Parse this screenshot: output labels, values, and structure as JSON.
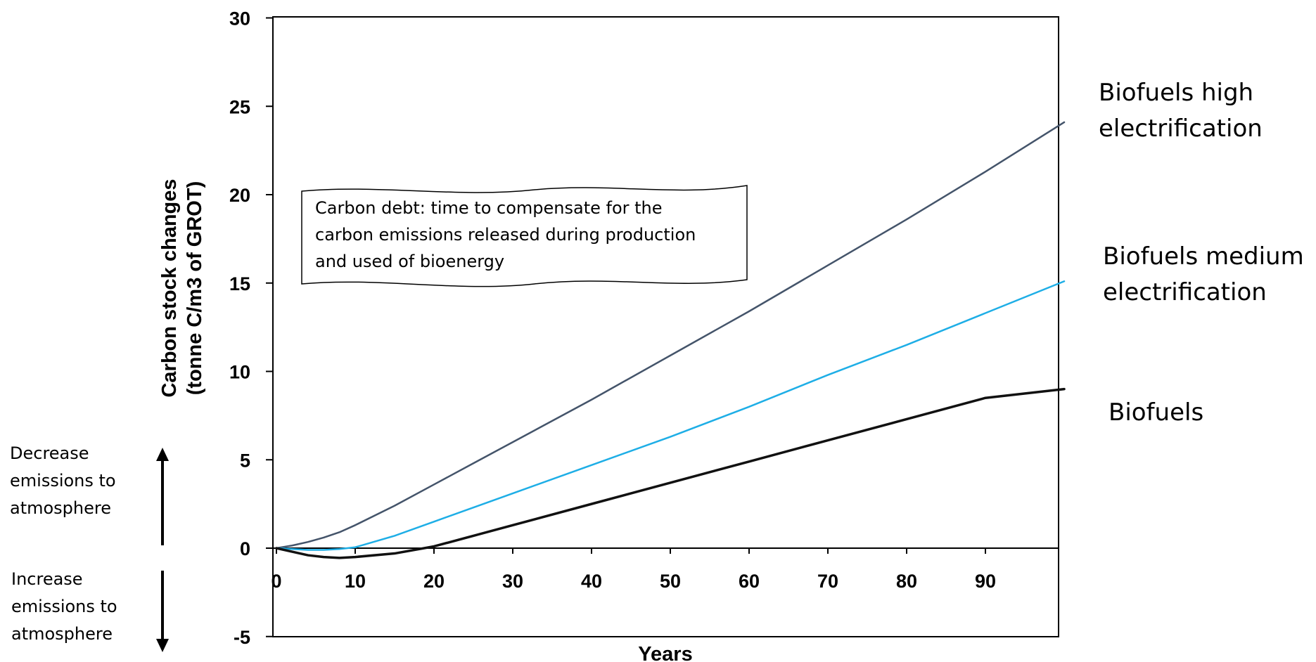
{
  "chart_data": {
    "type": "line",
    "title": "",
    "xlabel": "Years",
    "ylabel_line1": "Carbon stock changes",
    "ylabel_line2": "(tonne C/m3 of GROT)",
    "xlim": [
      0,
      100
    ],
    "ylim": [
      -5,
      30
    ],
    "x_ticks": [
      0,
      10,
      20,
      30,
      40,
      50,
      60,
      70,
      80,
      90
    ],
    "x_tick_labels": [
      "0",
      "10",
      "20",
      "30",
      "40",
      "50",
      "60",
      "70",
      "80",
      "90"
    ],
    "y_ticks": [
      -5,
      0,
      5,
      10,
      15,
      20,
      25,
      30
    ],
    "y_tick_labels": [
      "-5",
      "0",
      "5",
      "10",
      "15",
      "20",
      "25",
      "30"
    ],
    "grid": false,
    "x": [
      0,
      2,
      4,
      6,
      8,
      10,
      15,
      20,
      25,
      30,
      40,
      50,
      60,
      70,
      80,
      90,
      100
    ],
    "series": [
      {
        "key": "high",
        "label_lines": [
          "Biofuels high",
          "electrification"
        ],
        "color": "#44546a",
        "width": 2.5,
        "values": [
          0,
          0.15,
          0.35,
          0.6,
          0.9,
          1.3,
          2.4,
          3.6,
          4.8,
          6.0,
          8.4,
          10.9,
          13.4,
          16.0,
          18.6,
          21.3,
          24.1
        ]
      },
      {
        "key": "medium",
        "label_lines": [
          "Biofuels medium",
          "electrification"
        ],
        "color": "#1eaee6",
        "width": 2.5,
        "values": [
          0,
          -0.05,
          -0.1,
          -0.1,
          -0.05,
          0.05,
          0.7,
          1.5,
          2.3,
          3.1,
          4.7,
          6.3,
          8.0,
          9.8,
          11.5,
          13.3,
          15.1
        ]
      },
      {
        "key": "base",
        "label_lines": [
          "Biofuels"
        ],
        "color": "#111111",
        "width": 3.5,
        "values": [
          0,
          -0.2,
          -0.4,
          -0.5,
          -0.55,
          -0.5,
          -0.3,
          0.1,
          0.7,
          1.3,
          2.5,
          3.7,
          4.9,
          6.1,
          7.3,
          8.5,
          9.0
        ]
      }
    ],
    "annotation_lines": [
      "Carbon debt: time to compensate for the",
      "carbon emissions released during production",
      "and used of bioenergy"
    ]
  },
  "side_labels": {
    "decrease_lines": [
      "Decrease",
      "emissions to",
      "atmosphere"
    ],
    "increase_lines": [
      "Increase",
      "emissions to",
      "atmosphere"
    ]
  }
}
